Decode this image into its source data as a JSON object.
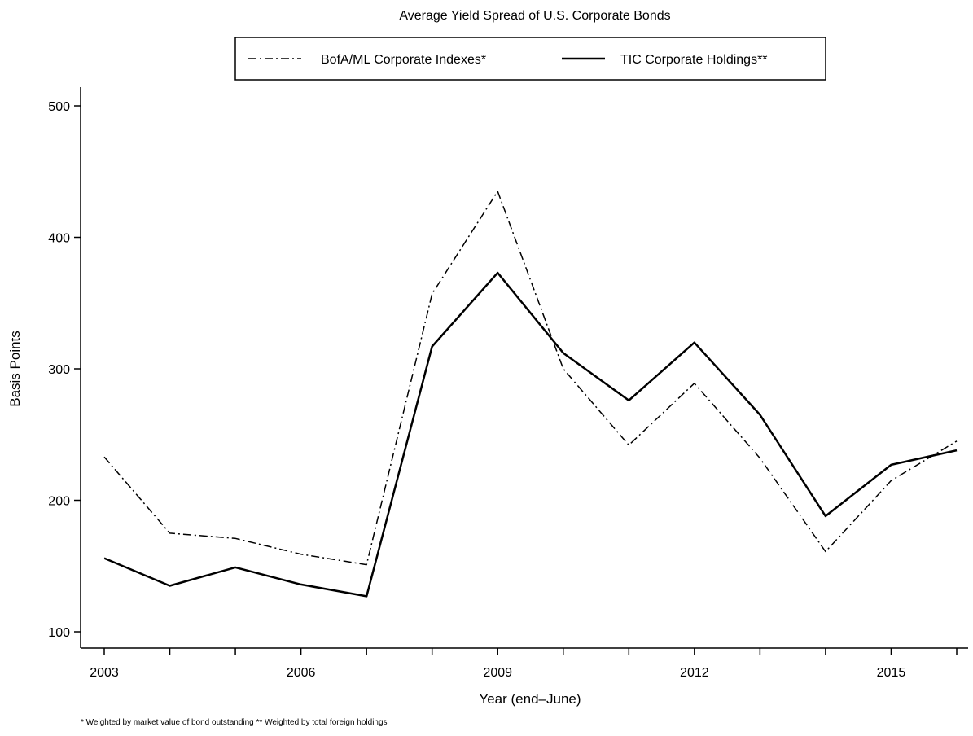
{
  "chart_data": {
    "type": "line",
    "title": "Average Yield Spread of U.S. Corporate Bonds",
    "xlabel": "Year (end–June)",
    "ylabel": "Basis Points",
    "footnote": "* Weighted by market value of bond outstanding ** Weighted by total foreign holdings",
    "x": [
      2003,
      2004,
      2005,
      2006,
      2007,
      2008,
      2009,
      2010,
      2011,
      2012,
      2013,
      2014,
      2015,
      2016
    ],
    "xlim": [
      2003,
      2016
    ],
    "ylim": [
      100,
      500
    ],
    "x_ticks": [
      2003,
      2004,
      2005,
      2006,
      2007,
      2008,
      2009,
      2010,
      2011,
      2012,
      2013,
      2014,
      2015,
      2016
    ],
    "x_tick_labels": {
      "2003": "2003",
      "2006": "2006",
      "2009": "2009",
      "2012": "2012",
      "2015": "2015"
    },
    "y_ticks": [
      100,
      200,
      300,
      400,
      500
    ],
    "y_tick_labels": [
      "100",
      "200",
      "300",
      "400",
      "500"
    ],
    "grid": false,
    "legend_position": "top-center",
    "series": [
      {
        "name": "BofA/ML Corporate Indexes*",
        "style": "dash-dot",
        "color": "#000000",
        "values": [
          233,
          175,
          171,
          159,
          151,
          357,
          435,
          300,
          242,
          289,
          232,
          161,
          215,
          245
        ]
      },
      {
        "name": "TIC Corporate Holdings**",
        "style": "solid",
        "color": "#000000",
        "values": [
          156,
          135,
          149,
          136,
          127,
          317,
          373,
          312,
          276,
          320,
          265,
          188,
          227,
          238
        ]
      }
    ]
  }
}
